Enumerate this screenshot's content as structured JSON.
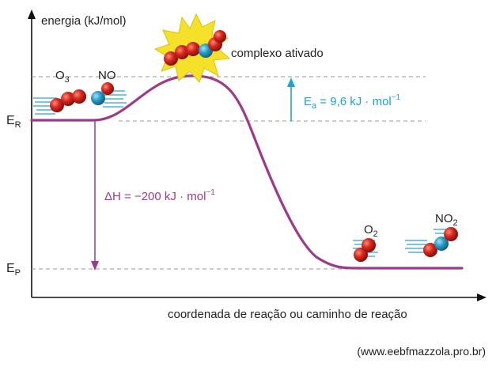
{
  "axes": {
    "y_label": "energia (kJ/mol)",
    "x_label": "coordenada de reação ou caminho de reação"
  },
  "levels": {
    "reactants": {
      "label": "E",
      "sub": "R"
    },
    "products": {
      "label": "E",
      "sub": "P"
    }
  },
  "activated_complex": {
    "label": "complexo ativado"
  },
  "activation_energy": {
    "symbol": "E",
    "sub": "a",
    "value": " = 9,6 kJ · mol",
    "exp": "−1"
  },
  "enthalpy": {
    "value": "ΔH = −200 kJ · mol",
    "exp": "−1"
  },
  "molecules": {
    "o3": {
      "label": "O",
      "sub": "3"
    },
    "no": {
      "label": "NO"
    },
    "o2": {
      "label": "O",
      "sub": "2"
    },
    "no2": {
      "label": "NO",
      "sub": "2"
    }
  },
  "credit": "(www.eebfmazzola.pro.br)",
  "colors": {
    "curve": "#9c3b8b",
    "dh_arrow": "#9c3b8b",
    "ea_arrow": "#1aa3d9",
    "ea_text": "#1aa3d9",
    "dh_text": "#9c3b8b",
    "oxygen": "#d7281e",
    "nitrogen": "#2a9fc9",
    "motion_lines": "#4fb0e0",
    "starburst": "#f5e02a"
  }
}
